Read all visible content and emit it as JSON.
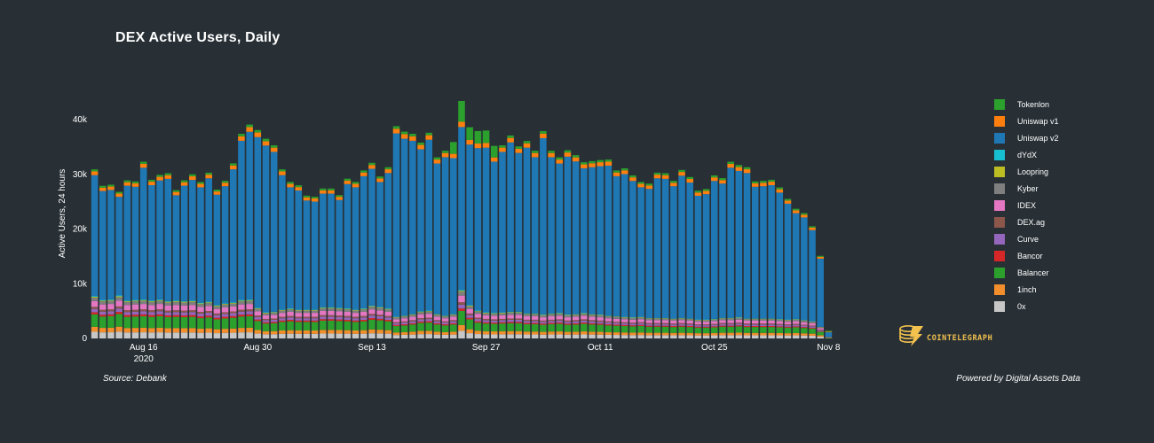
{
  "chart_data": {
    "type": "bar",
    "stacked": true,
    "title": "DEX Active Users, Daily",
    "ylabel": "Active Users, 24 hours",
    "xlabel": "",
    "ylim": [
      0,
      40000
    ],
    "yticks": [
      {
        "value": 0,
        "label": "0"
      },
      {
        "value": 10000,
        "label": "10k"
      },
      {
        "value": 20000,
        "label": "20k"
      },
      {
        "value": 30000,
        "label": "30k"
      },
      {
        "value": 40000,
        "label": "40k"
      }
    ],
    "xticks": [
      {
        "index": 6,
        "label": "Aug 16",
        "sublabel": "2020"
      },
      {
        "index": 20,
        "label": "Aug 30",
        "sublabel": ""
      },
      {
        "index": 34,
        "label": "Sep 13",
        "sublabel": ""
      },
      {
        "index": 48,
        "label": "Sep 27",
        "sublabel": ""
      },
      {
        "index": 62,
        "label": "Oct 11",
        "sublabel": ""
      },
      {
        "index": 76,
        "label": "Oct 25",
        "sublabel": ""
      },
      {
        "index": 90,
        "label": "Nov 8",
        "sublabel": ""
      }
    ],
    "n_days": 91,
    "totals": [
      30900,
      27900,
      28100,
      26800,
      28900,
      28700,
      32300,
      29000,
      29900,
      30200,
      27100,
      28900,
      30000,
      28600,
      30300,
      27200,
      28800,
      32000,
      37400,
      39100,
      38100,
      36500,
      35300,
      30900,
      28600,
      28000,
      26100,
      25900,
      27400,
      27400,
      26200,
      29200,
      28600,
      30700,
      32100,
      29600,
      31300,
      38800,
      37800,
      37400,
      35800,
      37600,
      33100,
      34300,
      35900,
      43400,
      38600,
      37900,
      38000,
      35200,
      35300,
      37100,
      35100,
      36100,
      34300,
      37900,
      34300,
      33100,
      34400,
      33500,
      32200,
      32400,
      32600,
      32700,
      30700,
      31100,
      29800,
      28600,
      28300,
      30300,
      30200,
      28800,
      30800,
      29500,
      27000,
      27300,
      29800,
      29300,
      32300,
      31700,
      31300,
      28700,
      28800,
      29000,
      27600,
      25500,
      23700,
      22900,
      20500,
      15100,
      1400
    ],
    "base_totals": [
      7600,
      6900,
      7000,
      7700,
      6800,
      6900,
      7000,
      6800,
      7000,
      6700,
      6800,
      6700,
      6800,
      6400,
      6600,
      6000,
      6300,
      6500,
      6900,
      7000,
      5500,
      4700,
      4800,
      5200,
      5400,
      5200,
      5200,
      5200,
      5600,
      5600,
      5500,
      5400,
      5200,
      5400,
      5900,
      5700,
      5400,
      3900,
      4100,
      4400,
      4900,
      5000,
      4400,
      4100,
      4400,
      8700,
      6000,
      5000,
      4700,
      4600,
      4700,
      4800,
      4800,
      4500,
      4500,
      4300,
      4500,
      4600,
      4300,
      4400,
      4600,
      4400,
      4300,
      4100,
      4000,
      3900,
      3800,
      3900,
      3700,
      3700,
      3700,
      3600,
      3700,
      3600,
      3400,
      3400,
      3500,
      3700,
      3700,
      3800,
      3600,
      3600,
      3600,
      3600,
      3500,
      3400,
      3500,
      3300,
      3100,
      2100,
      300
    ],
    "series": [
      {
        "name": "0x",
        "color": "#c7c7c7"
      },
      {
        "name": "1inch",
        "color": "#f28e2b"
      },
      {
        "name": "Balancer",
        "color": "#2ca02c"
      },
      {
        "name": "Bancor",
        "color": "#d62728"
      },
      {
        "name": "Curve",
        "color": "#9467bd"
      },
      {
        "name": "DEX.ag",
        "color": "#8c564b"
      },
      {
        "name": "IDEX",
        "color": "#e377c2"
      },
      {
        "name": "Kyber",
        "color": "#7f7f7f"
      },
      {
        "name": "Loopring",
        "color": "#bcbd22"
      },
      {
        "name": "dYdX",
        "color": "#17becf"
      },
      {
        "name": "Uniswap v2",
        "color": "#1f77b4"
      },
      {
        "name": "Uniswap v1",
        "color": "#ff7f0e"
      },
      {
        "name": "Tokenlon",
        "color": "#2ca02c"
      }
    ],
    "legend_order": [
      "Tokenlon",
      "Uniswap v1",
      "Uniswap v2",
      "dYdX",
      "Loopring",
      "Kyber",
      "IDEX",
      "DEX.ag",
      "Curve",
      "Bancor",
      "Balancer",
      "1inch",
      "0x"
    ],
    "colors": {
      "background": "#283036",
      "axis_text": "#ffffff"
    }
  },
  "footer": {
    "source": "Source: Debank",
    "powered": "Powered by Digital Assets Data",
    "brand": "COINTELEGRAPH"
  }
}
